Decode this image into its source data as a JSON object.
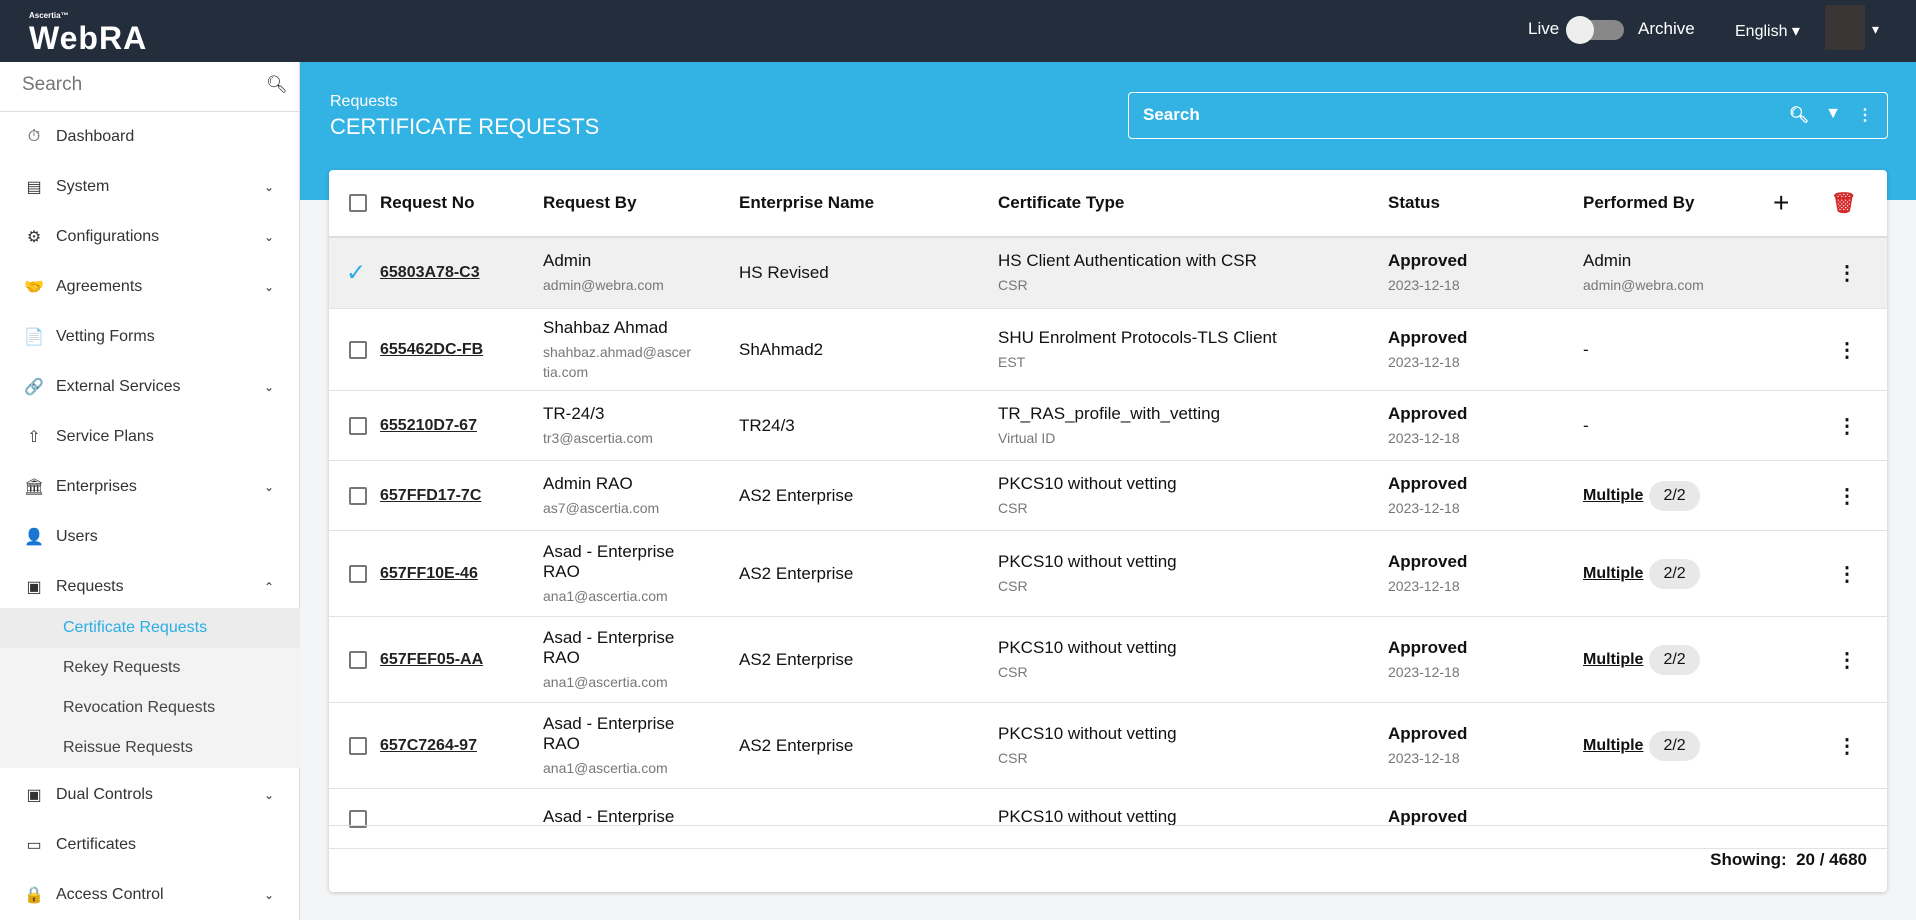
{
  "topbar": {
    "brand_small": "Ascertia™",
    "brand": "WebRA",
    "live": "Live",
    "archive": "Archive",
    "archive_mode_on": false,
    "language": "English ▾",
    "user_caret": "▾"
  },
  "sidebar": {
    "search_placeholder": "Search",
    "items": [
      {
        "label": "Dashboard",
        "icon": "⏱",
        "chev": ""
      },
      {
        "label": "System",
        "icon": "▤",
        "chev": "⌄"
      },
      {
        "label": "Configurations",
        "icon": "⚙",
        "chev": "⌄"
      },
      {
        "label": "Agreements",
        "icon": "🤝",
        "chev": "⌄"
      },
      {
        "label": "Vetting Forms",
        "icon": "📄",
        "chev": ""
      },
      {
        "label": "External Services",
        "icon": "🔗",
        "chev": "⌄"
      },
      {
        "label": "Service Plans",
        "icon": "⇧",
        "chev": ""
      },
      {
        "label": "Enterprises",
        "icon": "🏛",
        "chev": "⌄"
      },
      {
        "label": "Users",
        "icon": "👤",
        "chev": ""
      },
      {
        "label": "Requests",
        "icon": "▣",
        "chev": "⌃"
      }
    ],
    "sub_items": [
      "Certificate Requests",
      "Rekey Requests",
      "Revocation Requests",
      "Reissue Requests"
    ],
    "items_after": [
      {
        "label": "Dual Controls",
        "icon": "▣",
        "chev": "⌄"
      },
      {
        "label": "Certificates",
        "icon": "▭",
        "chev": ""
      },
      {
        "label": "Access Control",
        "icon": "🔒",
        "chev": "⌄"
      }
    ]
  },
  "banner": {
    "breadcrumb": "Requests",
    "title": "CERTIFICATE REQUESTS",
    "search_placeholder": "Search"
  },
  "table": {
    "headers": [
      "Request No",
      "Request By",
      "Enterprise Name",
      "Certificate Type",
      "Status",
      "Performed By"
    ],
    "rows": [
      {
        "id": "65803A78-C3",
        "by": "Admin",
        "email": "admin@webra.com",
        "ent": "HS Revised",
        "ct": "HS Client Authentication with CSR",
        "ct_sub": "CSR",
        "status": "Approved",
        "date": "2023-12-18",
        "pb": "Admin",
        "pb_email": "admin@webra.com",
        "selected": true
      },
      {
        "id": "655462DC-FB",
        "by": "Shahbaz Ahmad",
        "email": "shahbaz.ahmad@ascertia.com",
        "ent": "ShAhmad2",
        "ct": "SHU Enrolment Protocols-TLS Client",
        "ct_sub": "EST",
        "status": "Approved",
        "date": "2023-12-18",
        "pb": "-"
      },
      {
        "id": "655210D7-67",
        "by": "TR-24/3",
        "email": "tr3@ascertia.com",
        "ent": "TR24/3",
        "ct": "TR_RAS_profile_with_vetting",
        "ct_sub": "Virtual ID",
        "status": "Approved",
        "date": "2023-12-18",
        "pb": "-"
      },
      {
        "id": "657FFD17-7C",
        "by": "Admin RAO",
        "email": "as7@ascertia.com",
        "ent": "AS2 Enterprise",
        "ct": "PKCS10 without vetting",
        "ct_sub": "CSR",
        "status": "Approved",
        "date": "2023-12-18",
        "pb": "Multiple",
        "badge": "2/2"
      },
      {
        "id": "657FF10E-46",
        "by": "Asad - Enterprise RAO",
        "email": "ana1@ascertia.com",
        "ent": "AS2 Enterprise",
        "ct": "PKCS10 without vetting",
        "ct_sub": "CSR",
        "status": "Approved",
        "date": "2023-12-18",
        "pb": "Multiple",
        "badge": "2/2"
      },
      {
        "id": "657FEF05-AA",
        "by": "Asad - Enterprise RAO",
        "email": "ana1@ascertia.com",
        "ent": "AS2 Enterprise",
        "ct": "PKCS10 without vetting",
        "ct_sub": "CSR",
        "status": "Approved",
        "date": "2023-12-18",
        "pb": "Multiple",
        "badge": "2/2"
      },
      {
        "id": "657C7264-97",
        "by": "Asad - Enterprise RAO",
        "email": "ana1@ascertia.com",
        "ent": "AS2 Enterprise",
        "ct": "PKCS10 without vetting",
        "ct_sub": "CSR",
        "status": "Approved",
        "date": "2023-12-18",
        "pb": "Multiple",
        "badge": "2/2"
      },
      {
        "id": "",
        "by": "Asad - Enterprise",
        "email": "",
        "ent": "",
        "ct": "PKCS10 without vetting",
        "ct_sub": "",
        "status": "Approved",
        "date": "",
        "pb": ""
      }
    ],
    "footer_label": "Showing:",
    "footer_value": "20 / 4680"
  },
  "colors": {
    "topbar": "#232d3c",
    "accent": "#33b3e4",
    "delete": "#d42a2a"
  }
}
